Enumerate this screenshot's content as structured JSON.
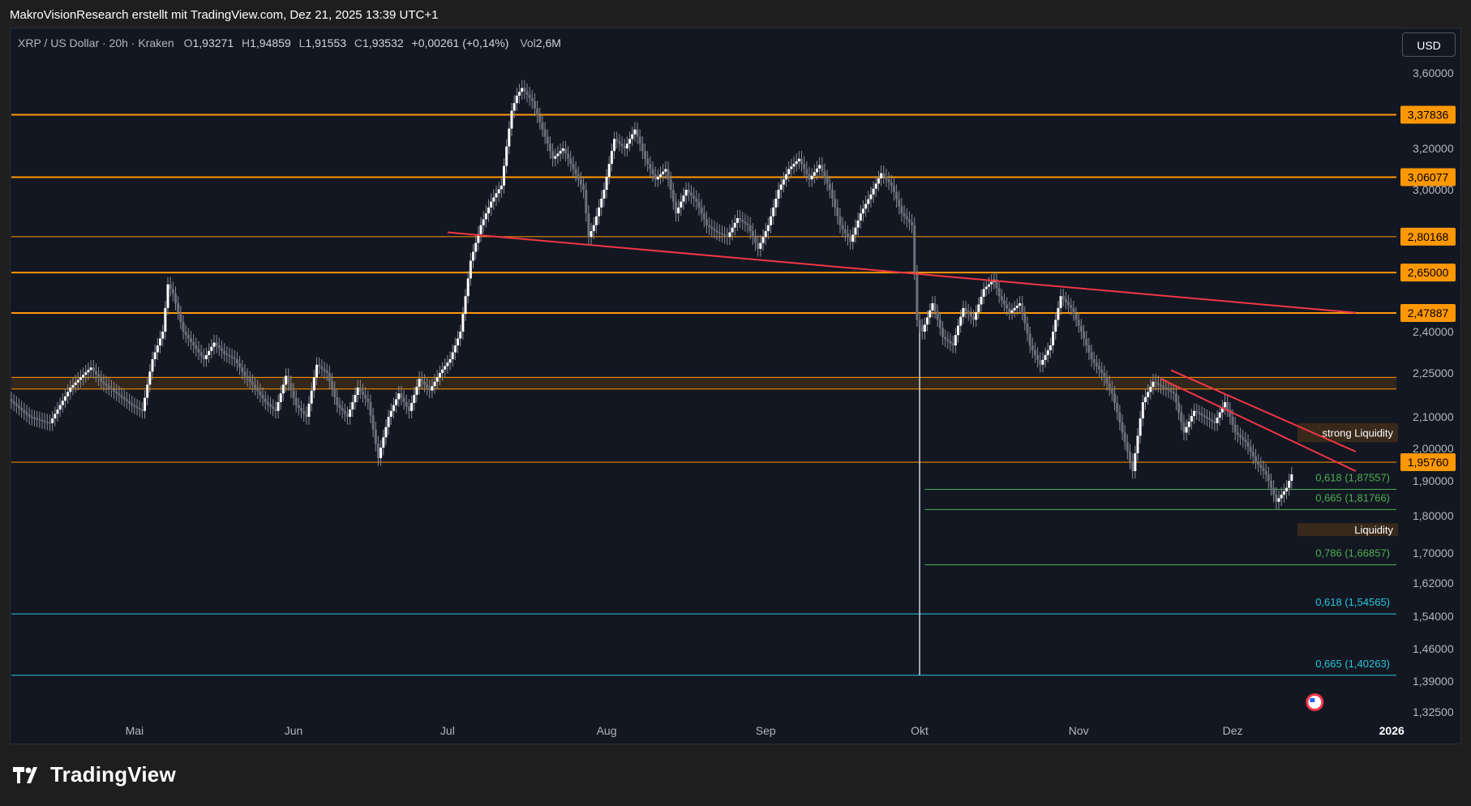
{
  "header": {
    "attribution": "MakroVisionResearch erstellt mit TradingView.com, Dez 21, 2025 13:39 UTC+1"
  },
  "legend": {
    "symbol": "XRP / US Dollar · 20h · Kraken",
    "o_label": "O",
    "o_value": "1,93271",
    "h_label": "H",
    "h_value": "1,94859",
    "l_label": "L",
    "l_value": "1,91553",
    "c_label": "C",
    "c_value": "1,93532",
    "change": "+0,00261 (+0,14%)",
    "vol_label": "Vol",
    "vol_value": "2,6M"
  },
  "currency_button": "USD",
  "footer": {
    "brand": "TradingView"
  },
  "colors": {
    "background": "#131722",
    "candle": "#d1d4dc",
    "resistance": "#ff9800",
    "trendline": "#f23645",
    "fib_green": "#4caf50",
    "fib_blue": "#26c6da",
    "zone": "#3a2a1a"
  },
  "chart_data": {
    "type": "line",
    "title": "XRP / US Dollar",
    "ylim": [
      1.31,
      3.68
    ],
    "xlim": [
      0,
      360
    ],
    "x_ticks": [
      {
        "label": "Mai",
        "day": 24,
        "bold": false
      },
      {
        "label": "Jun",
        "day": 55,
        "bold": false
      },
      {
        "label": "Jul",
        "day": 85,
        "bold": false
      },
      {
        "label": "Aug",
        "day": 116,
        "bold": false
      },
      {
        "label": "Sep",
        "day": 147,
        "bold": false
      },
      {
        "label": "Okt",
        "day": 177,
        "bold": false
      },
      {
        "label": "Nov",
        "day": 208,
        "bold": false
      },
      {
        "label": "Dez",
        "day": 238,
        "bold": false
      },
      {
        "label": "2026",
        "day": 269,
        "bold": true
      }
    ],
    "y_ticks": [
      "3,60000",
      "3,20000",
      "3,00000",
      "2,40000",
      "2,25000",
      "2,10000",
      "2,00000",
      "1,90000",
      "1,80000",
      "1,70000",
      "1,62000",
      "1,54000",
      "1,46000",
      "1,39000",
      "1,32500"
    ],
    "price_series": {
      "name": "XRP/USD close",
      "points": [
        [
          0,
          2.16
        ],
        [
          4,
          2.1
        ],
        [
          8,
          2.08
        ],
        [
          12,
          2.2
        ],
        [
          16,
          2.27
        ],
        [
          18,
          2.22
        ],
        [
          21,
          2.18
        ],
        [
          24,
          2.14
        ],
        [
          26,
          2.12
        ],
        [
          28,
          2.3
        ],
        [
          30,
          2.4
        ],
        [
          31,
          2.6
        ],
        [
          32,
          2.56
        ],
        [
          34,
          2.4
        ],
        [
          36,
          2.35
        ],
        [
          38,
          2.3
        ],
        [
          40,
          2.36
        ],
        [
          42,
          2.32
        ],
        [
          44,
          2.3
        ],
        [
          46,
          2.24
        ],
        [
          48,
          2.2
        ],
        [
          50,
          2.15
        ],
        [
          52,
          2.12
        ],
        [
          54,
          2.24
        ],
        [
          56,
          2.14
        ],
        [
          58,
          2.1
        ],
        [
          60,
          2.28
        ],
        [
          62,
          2.25
        ],
        [
          64,
          2.14
        ],
        [
          66,
          2.1
        ],
        [
          68,
          2.2
        ],
        [
          70,
          2.15
        ],
        [
          72,
          1.97
        ],
        [
          74,
          2.1
        ],
        [
          76,
          2.18
        ],
        [
          78,
          2.12
        ],
        [
          80,
          2.23
        ],
        [
          82,
          2.19
        ],
        [
          84,
          2.25
        ],
        [
          86,
          2.3
        ],
        [
          88,
          2.4
        ],
        [
          90,
          2.7
        ],
        [
          92,
          2.85
        ],
        [
          94,
          2.95
        ],
        [
          96,
          3.02
        ],
        [
          98,
          3.4
        ],
        [
          99,
          3.48
        ],
        [
          100,
          3.52
        ],
        [
          102,
          3.45
        ],
        [
          104,
          3.3
        ],
        [
          106,
          3.15
        ],
        [
          108,
          3.2
        ],
        [
          110,
          3.1
        ],
        [
          112,
          3.0
        ],
        [
          113,
          2.8
        ],
        [
          114,
          2.85
        ],
        [
          116,
          3.0
        ],
        [
          118,
          3.25
        ],
        [
          120,
          3.2
        ],
        [
          122,
          3.3
        ],
        [
          124,
          3.15
        ],
        [
          126,
          3.05
        ],
        [
          128,
          3.1
        ],
        [
          130,
          2.9
        ],
        [
          132,
          3.0
        ],
        [
          134,
          2.95
        ],
        [
          136,
          2.85
        ],
        [
          138,
          2.82
        ],
        [
          140,
          2.8
        ],
        [
          142,
          2.88
        ],
        [
          144,
          2.85
        ],
        [
          146,
          2.75
        ],
        [
          148,
          2.85
        ],
        [
          150,
          3.0
        ],
        [
          152,
          3.1
        ],
        [
          154,
          3.15
        ],
        [
          156,
          3.05
        ],
        [
          158,
          3.12
        ],
        [
          160,
          3.0
        ],
        [
          162,
          2.85
        ],
        [
          164,
          2.78
        ],
        [
          166,
          2.9
        ],
        [
          168,
          2.98
        ],
        [
          170,
          3.08
        ],
        [
          172,
          3.02
        ],
        [
          174,
          2.9
        ],
        [
          176,
          2.85
        ],
        [
          177,
          2.45
        ],
        [
          178,
          2.4
        ],
        [
          180,
          2.52
        ],
        [
          182,
          2.38
        ],
        [
          184,
          2.35
        ],
        [
          186,
          2.5
        ],
        [
          188,
          2.45
        ],
        [
          190,
          2.58
        ],
        [
          192,
          2.62
        ],
        [
          193,
          2.55
        ],
        [
          195,
          2.48
        ],
        [
          197,
          2.52
        ],
        [
          199,
          2.35
        ],
        [
          201,
          2.28
        ],
        [
          203,
          2.35
        ],
        [
          205,
          2.55
        ],
        [
          207,
          2.5
        ],
        [
          209,
          2.4
        ],
        [
          211,
          2.3
        ],
        [
          213,
          2.25
        ],
        [
          215,
          2.18
        ],
        [
          217,
          2.05
        ],
        [
          219,
          1.93
        ],
        [
          221,
          2.15
        ],
        [
          223,
          2.22
        ],
        [
          225,
          2.2
        ],
        [
          227,
          2.18
        ],
        [
          229,
          2.05
        ],
        [
          231,
          2.12
        ],
        [
          233,
          2.1
        ],
        [
          235,
          2.08
        ],
        [
          237,
          2.15
        ],
        [
          239,
          2.05
        ],
        [
          241,
          2.02
        ],
        [
          243,
          1.96
        ],
        [
          245,
          1.92
        ],
        [
          247,
          1.84
        ],
        [
          249,
          1.88
        ],
        [
          250,
          1.92
        ]
      ]
    },
    "horizontal_levels": [
      {
        "value": 3.37836,
        "label": "3,37836",
        "kind": "resistance"
      },
      {
        "value": 3.06077,
        "label": "3,06077",
        "kind": "resistance"
      },
      {
        "value": 2.80168,
        "label": "2,80168",
        "kind": "resistance-thin"
      },
      {
        "value": 2.65,
        "label": "2,65000",
        "kind": "resistance"
      },
      {
        "value": 2.47887,
        "label": "2,47887",
        "kind": "resistance"
      },
      {
        "value": 1.9576,
        "label": "1,95760",
        "kind": "resistance-thin"
      }
    ],
    "zone": {
      "top": 2.235,
      "bottom": 2.195
    },
    "fib_levels": [
      {
        "value": 1.87557,
        "label": "0,618 (1,87557)",
        "color": "green",
        "start_day": 178
      },
      {
        "value": 1.81766,
        "label": "0,665 (1,81766)",
        "color": "green",
        "start_day": 178
      },
      {
        "value": 1.66857,
        "label": "0,786 (1,66857)",
        "color": "green",
        "start_day": 178
      },
      {
        "value": 1.54565,
        "label": "0,618 (1,54565)",
        "color": "blue",
        "start_day": 0
      },
      {
        "value": 1.40263,
        "label": "0,665 (1,40263)",
        "color": "blue",
        "start_day": 0
      }
    ],
    "wick_low": {
      "day": 177,
      "value": 1.40263
    },
    "trendlines": [
      {
        "from": [
          85,
          2.82
        ],
        "to": [
          262,
          2.48
        ]
      },
      {
        "from": [
          224,
          2.23
        ],
        "to": [
          262,
          1.93
        ]
      },
      {
        "from": [
          226,
          2.26
        ],
        "to": [
          262,
          1.99
        ]
      }
    ],
    "liquidity_boxes": [
      {
        "label": "strong Liquidity",
        "top": 2.08,
        "bottom": 2.02
      },
      {
        "label": "Liquidity",
        "top": 1.78,
        "bottom": 1.765
      }
    ]
  }
}
